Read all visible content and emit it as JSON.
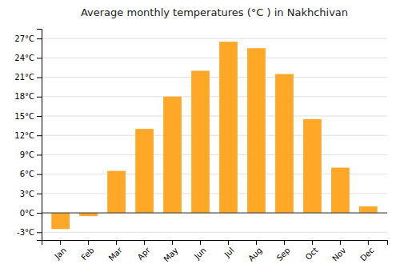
{
  "chart_data": {
    "type": "bar",
    "title": "Average monthly temperatures (°C ) in Nakhchivan",
    "categories": [
      "Jan",
      "Feb",
      "Mar",
      "Apr",
      "May",
      "Jun",
      "Jul",
      "Aug",
      "Sep",
      "Oct",
      "Nov",
      "Dec"
    ],
    "values": [
      -2.5,
      -0.5,
      6.5,
      13.0,
      18.0,
      22.0,
      26.5,
      25.5,
      21.5,
      14.5,
      7.0,
      1.0
    ],
    "color": "#FFA726",
    "ylim": [
      -4.2,
      28.5
    ],
    "yticks": [
      {
        "value": -3,
        "label": "-3°C"
      },
      {
        "value": 0,
        "label": "0°C"
      },
      {
        "value": 3,
        "label": "3°C"
      },
      {
        "value": 6,
        "label": "6°C"
      },
      {
        "value": 9,
        "label": "9°C"
      },
      {
        "value": 12,
        "label": "12°C"
      },
      {
        "value": 15,
        "label": "15°C"
      },
      {
        "value": 18,
        "label": "18°C"
      },
      {
        "value": 21,
        "label": "21°C"
      },
      {
        "value": 24,
        "label": "24°C"
      },
      {
        "value": 27,
        "label": "27°C"
      }
    ],
    "grid": true
  }
}
